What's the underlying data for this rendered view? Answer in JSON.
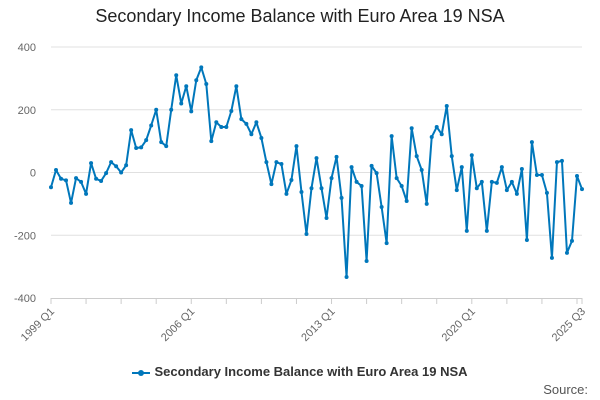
{
  "chart_data": {
    "type": "line",
    "title": "Secondary Income Balance with Euro Area 19 NSA",
    "xlabel": "",
    "ylabel": "",
    "ylim": [
      -400,
      400
    ],
    "yticks": [
      400,
      200,
      0,
      -200,
      -400
    ],
    "xtick_labels": [
      "1999 Q1",
      "2006 Q1",
      "2013 Q1",
      "2020 Q1",
      "2025 Q3"
    ],
    "xtick_indices": [
      0,
      28,
      56,
      84,
      106
    ],
    "grid": true,
    "legend_position": "bottom",
    "start_year": 1999,
    "series": [
      {
        "name": "Secondary Income Balance with Euro Area 19 NSA",
        "color": "#0077bb",
        "values": [
          -47,
          8,
          -20,
          -25,
          -97,
          -18,
          -30,
          -68,
          30,
          -20,
          -27,
          -2,
          33,
          20,
          0,
          23,
          135,
          78,
          80,
          103,
          150,
          200,
          97,
          84,
          200,
          310,
          220,
          275,
          195,
          294,
          335,
          282,
          100,
          160,
          145,
          145,
          196,
          275,
          170,
          155,
          122,
          160,
          110,
          33,
          -37,
          33,
          27,
          -68,
          -24,
          84,
          -62,
          -196,
          -50,
          46,
          -50,
          -145,
          -18,
          50,
          -81,
          -333,
          17,
          -30,
          -43,
          -282,
          21,
          -2,
          -110,
          -225,
          116,
          -18,
          -43,
          -91,
          141,
          52,
          8,
          -100,
          113,
          145,
          122,
          212,
          52,
          -56,
          17,
          -186,
          55,
          -50,
          -30,
          -186,
          -30,
          -33,
          17,
          -56,
          -30,
          -68,
          11,
          -215,
          97,
          -8,
          -8,
          -65,
          -272,
          33,
          37,
          -256,
          -218,
          -11,
          -53
        ]
      }
    ]
  },
  "source_label": "Source:"
}
